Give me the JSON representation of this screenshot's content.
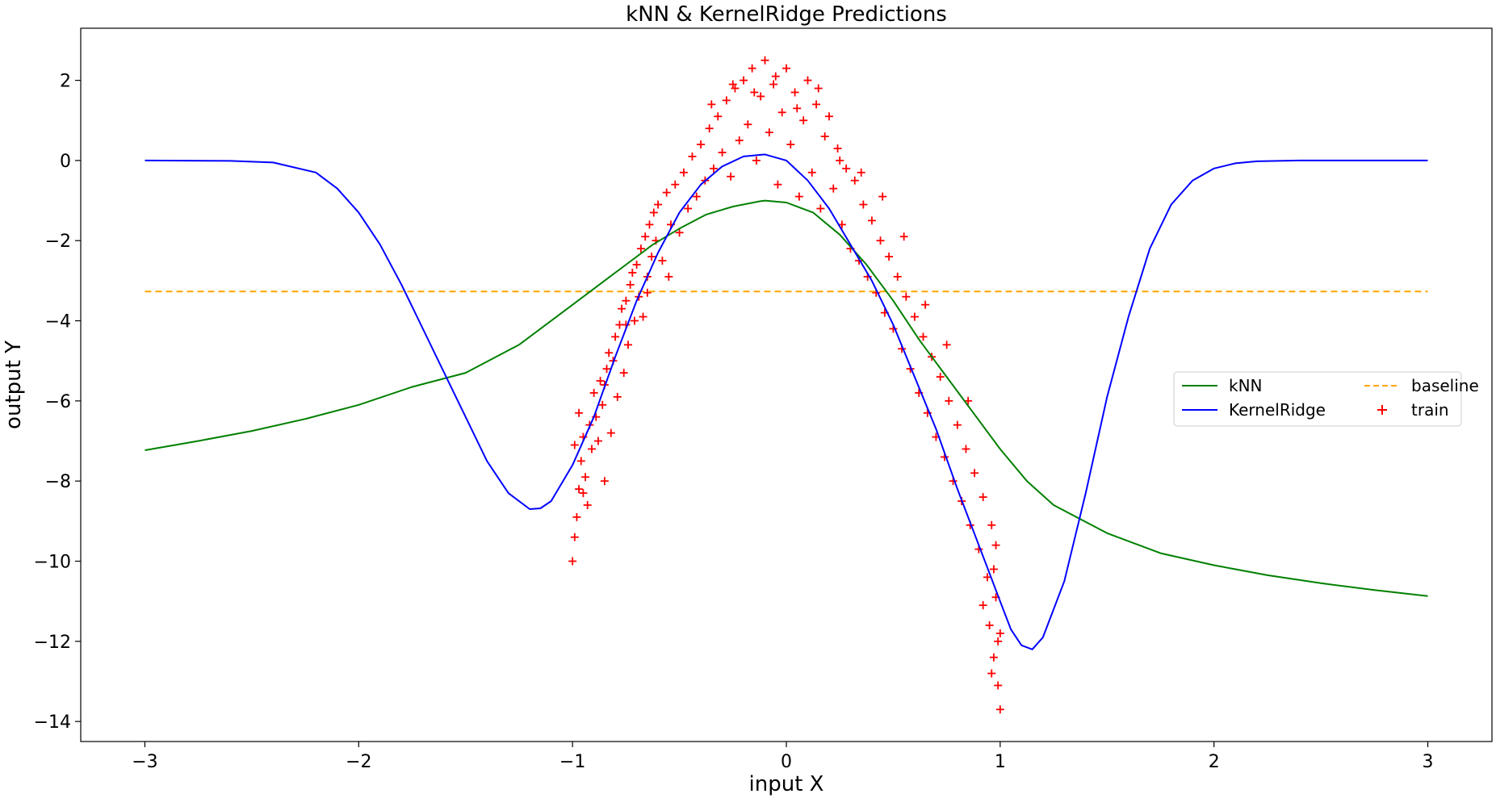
{
  "chart_data": {
    "type": "line",
    "title": "kNN & KernelRidge Predictions",
    "xlabel": "input X",
    "ylabel": "output Y",
    "xlim": [
      -3.3,
      3.3
    ],
    "ylim": [
      -14.5,
      3.3
    ],
    "xticks": [
      -3,
      -2,
      -1,
      0,
      1,
      2,
      3
    ],
    "yticks": [
      2,
      0,
      -2,
      -4,
      -6,
      -8,
      -10,
      -12,
      -14
    ],
    "xtick_labels": [
      "−3",
      "−2",
      "−1",
      "0",
      "1",
      "2",
      "3"
    ],
    "ytick_labels": [
      "2",
      "0",
      "−2",
      "−4",
      "−6",
      "−8",
      "−10",
      "−12",
      "−14"
    ],
    "grid": false,
    "legend": {
      "position": "center-right",
      "columns": 2,
      "entries": [
        {
          "label": "kNN",
          "color": "#008000",
          "style": "solid"
        },
        {
          "label": "KernelRidge",
          "color": "#0000ff",
          "style": "solid"
        },
        {
          "label": "baseline",
          "color": "#ffa500",
          "style": "dashed"
        },
        {
          "label": "train",
          "color": "#ff0000",
          "style": "plus-marker"
        }
      ]
    },
    "series": [
      {
        "name": "kNN",
        "color": "#008000",
        "style": "solid",
        "x": [
          -3.0,
          -2.75,
          -2.5,
          -2.25,
          -2.0,
          -1.75,
          -1.5,
          -1.25,
          -1.0,
          -0.875,
          -0.75,
          -0.625,
          -0.5,
          -0.375,
          -0.25,
          -0.125,
          -0.1,
          0.0,
          0.125,
          0.25,
          0.375,
          0.5,
          0.625,
          0.75,
          0.875,
          1.0,
          1.125,
          1.25,
          1.5,
          1.75,
          2.0,
          2.25,
          2.5,
          2.75,
          3.0
        ],
        "y": [
          -7.23,
          -7.0,
          -6.75,
          -6.45,
          -6.1,
          -5.65,
          -5.3,
          -4.6,
          -3.6,
          -3.1,
          -2.6,
          -2.1,
          -1.7,
          -1.35,
          -1.15,
          -1.02,
          -1.0,
          -1.05,
          -1.3,
          -1.85,
          -2.6,
          -3.5,
          -4.5,
          -5.4,
          -6.3,
          -7.2,
          -8.0,
          -8.6,
          -9.3,
          -9.8,
          -10.1,
          -10.35,
          -10.55,
          -10.72,
          -10.87
        ]
      },
      {
        "name": "KernelRidge",
        "color": "#0000ff",
        "style": "solid",
        "x": [
          -3.0,
          -2.6,
          -2.4,
          -2.2,
          -2.1,
          -2.0,
          -1.9,
          -1.8,
          -1.7,
          -1.6,
          -1.5,
          -1.4,
          -1.3,
          -1.2,
          -1.15,
          -1.1,
          -1.0,
          -0.9,
          -0.8,
          -0.7,
          -0.6,
          -0.5,
          -0.4,
          -0.3,
          -0.2,
          -0.1,
          0.0,
          0.1,
          0.2,
          0.3,
          0.4,
          0.5,
          0.6,
          0.7,
          0.8,
          0.9,
          1.0,
          1.05,
          1.1,
          1.15,
          1.2,
          1.3,
          1.4,
          1.5,
          1.6,
          1.7,
          1.8,
          1.9,
          2.0,
          2.1,
          2.2,
          2.4,
          2.6,
          3.0
        ],
        "y": [
          0.0,
          -0.01,
          -0.05,
          -0.3,
          -0.7,
          -1.3,
          -2.1,
          -3.1,
          -4.2,
          -5.3,
          -6.4,
          -7.5,
          -8.3,
          -8.7,
          -8.68,
          -8.5,
          -7.6,
          -6.4,
          -4.9,
          -3.5,
          -2.3,
          -1.3,
          -0.6,
          -0.15,
          0.1,
          0.15,
          0.0,
          -0.5,
          -1.2,
          -2.1,
          -3.0,
          -4.1,
          -5.4,
          -6.7,
          -8.2,
          -9.6,
          -11.0,
          -11.7,
          -12.1,
          -12.2,
          -11.9,
          -10.5,
          -8.3,
          -5.9,
          -3.9,
          -2.2,
          -1.1,
          -0.5,
          -0.2,
          -0.07,
          -0.02,
          0.0,
          0.0,
          0.0
        ]
      },
      {
        "name": "baseline",
        "color": "#ffa500",
        "style": "dashed",
        "x": [
          -3.0,
          3.0
        ],
        "y": [
          -3.27,
          -3.27
        ]
      }
    ],
    "scatter": {
      "name": "train",
      "color": "#ff0000",
      "marker": "+",
      "x_range": [
        -1.0,
        1.0
      ],
      "points": [
        [
          -1.0,
          -10.0
        ],
        [
          -0.99,
          -9.4
        ],
        [
          -0.98,
          -8.9
        ],
        [
          -0.97,
          -8.2
        ],
        [
          -0.96,
          -7.5
        ],
        [
          -0.95,
          -6.9
        ],
        [
          -0.94,
          -7.9
        ],
        [
          -0.93,
          -8.6
        ],
        [
          -0.92,
          -6.6
        ],
        [
          -0.91,
          -7.2
        ],
        [
          -0.9,
          -5.8
        ],
        [
          -0.89,
          -6.4
        ],
        [
          -0.88,
          -7.0
        ],
        [
          -0.87,
          -5.5
        ],
        [
          -0.86,
          -6.1
        ],
        [
          -0.85,
          -8.0
        ],
        [
          -0.84,
          -5.2
        ],
        [
          -0.83,
          -4.8
        ],
        [
          -0.82,
          -6.8
        ],
        [
          -0.81,
          -5.0
        ],
        [
          -0.8,
          -4.4
        ],
        [
          -0.79,
          -5.9
        ],
        [
          -0.78,
          -4.1
        ],
        [
          -0.77,
          -3.7
        ],
        [
          -0.76,
          -5.3
        ],
        [
          -0.75,
          -3.5
        ],
        [
          -0.74,
          -4.6
        ],
        [
          -0.73,
          -3.1
        ],
        [
          -0.72,
          -2.8
        ],
        [
          -0.71,
          -4.0
        ],
        [
          -0.7,
          -2.6
        ],
        [
          -0.69,
          -3.4
        ],
        [
          -0.68,
          -2.2
        ],
        [
          -0.67,
          -3.9
        ],
        [
          -0.66,
          -1.9
        ],
        [
          -0.65,
          -2.9
        ],
        [
          -0.64,
          -1.6
        ],
        [
          -0.63,
          -2.4
        ],
        [
          -0.62,
          -1.3
        ],
        [
          -0.61,
          -2.0
        ],
        [
          -0.6,
          -1.1
        ],
        [
          -0.58,
          -2.5
        ],
        [
          -0.56,
          -0.8
        ],
        [
          -0.54,
          -1.6
        ],
        [
          -0.52,
          -0.6
        ],
        [
          -0.5,
          -1.8
        ],
        [
          -0.48,
          -0.3
        ],
        [
          -0.46,
          -1.2
        ],
        [
          -0.44,
          0.1
        ],
        [
          -0.42,
          -0.9
        ],
        [
          -0.4,
          0.4
        ],
        [
          -0.38,
          -0.5
        ],
        [
          -0.36,
          0.8
        ],
        [
          -0.34,
          -0.2
        ],
        [
          -0.32,
          1.1
        ],
        [
          -0.3,
          0.2
        ],
        [
          -0.28,
          1.5
        ],
        [
          -0.26,
          -0.4
        ],
        [
          -0.24,
          1.8
        ],
        [
          -0.22,
          0.5
        ],
        [
          -0.2,
          2.0
        ],
        [
          -0.18,
          0.9
        ],
        [
          -0.16,
          2.3
        ],
        [
          -0.14,
          0.0
        ],
        [
          -0.12,
          1.6
        ],
        [
          -0.1,
          2.5
        ],
        [
          -0.08,
          0.7
        ],
        [
          -0.06,
          1.9
        ],
        [
          -0.04,
          -0.6
        ],
        [
          -0.02,
          1.2
        ],
        [
          0.0,
          2.3
        ],
        [
          0.02,
          0.4
        ],
        [
          0.04,
          1.7
        ],
        [
          0.06,
          -0.9
        ],
        [
          0.08,
          1.0
        ],
        [
          0.1,
          2.0
        ],
        [
          0.12,
          -0.3
        ],
        [
          0.14,
          1.4
        ],
        [
          0.16,
          -1.2
        ],
        [
          0.18,
          0.6
        ],
        [
          0.2,
          1.1
        ],
        [
          0.22,
          -0.7
        ],
        [
          0.24,
          0.3
        ],
        [
          0.26,
          -1.6
        ],
        [
          0.28,
          -0.2
        ],
        [
          0.3,
          -2.2
        ],
        [
          0.32,
          -0.5
        ],
        [
          0.34,
          -2.5
        ],
        [
          0.36,
          -1.1
        ],
        [
          0.38,
          -2.9
        ],
        [
          0.4,
          -1.5
        ],
        [
          0.42,
          -3.3
        ],
        [
          0.44,
          -2.0
        ],
        [
          0.46,
          -3.8
        ],
        [
          0.48,
          -2.4
        ],
        [
          0.5,
          -4.2
        ],
        [
          0.52,
          -2.9
        ],
        [
          0.54,
          -4.7
        ],
        [
          0.56,
          -3.4
        ],
        [
          0.58,
          -5.2
        ],
        [
          0.6,
          -3.9
        ],
        [
          0.62,
          -5.8
        ],
        [
          0.64,
          -4.4
        ],
        [
          0.66,
          -6.3
        ],
        [
          0.68,
          -4.9
        ],
        [
          0.7,
          -6.9
        ],
        [
          0.72,
          -5.4
        ],
        [
          0.74,
          -7.4
        ],
        [
          0.76,
          -6.0
        ],
        [
          0.78,
          -8.0
        ],
        [
          0.8,
          -6.6
        ],
        [
          0.82,
          -8.5
        ],
        [
          0.84,
          -7.2
        ],
        [
          0.86,
          -9.1
        ],
        [
          0.88,
          -7.8
        ],
        [
          0.9,
          -9.7
        ],
        [
          0.92,
          -8.4
        ],
        [
          0.94,
          -10.4
        ],
        [
          0.95,
          -11.6
        ],
        [
          0.96,
          -9.1
        ],
        [
          0.97,
          -12.4
        ],
        [
          0.98,
          -10.9
        ],
        [
          0.99,
          -13.1
        ],
        [
          1.0,
          -13.7
        ],
        [
          1.0,
          -11.8
        ],
        [
          0.99,
          -12.0
        ],
        [
          0.98,
          -9.6
        ],
        [
          0.97,
          -10.2
        ],
        [
          -0.97,
          -6.3
        ],
        [
          -0.95,
          -8.3
        ],
        [
          -0.35,
          1.4
        ],
        [
          -0.25,
          1.9
        ],
        [
          -0.15,
          1.7
        ],
        [
          -0.05,
          2.1
        ],
        [
          0.05,
          1.3
        ],
        [
          0.15,
          1.8
        ],
        [
          0.25,
          0.0
        ],
        [
          0.35,
          -0.3
        ],
        [
          0.45,
          -0.9
        ],
        [
          0.55,
          -1.9
        ],
        [
          -0.55,
          -2.9
        ],
        [
          -0.65,
          -3.3
        ],
        [
          -0.75,
          -4.1
        ],
        [
          -0.85,
          -5.6
        ],
        [
          0.65,
          -3.6
        ],
        [
          0.75,
          -4.6
        ],
        [
          0.85,
          -6.0
        ],
        [
          0.92,
          -11.1
        ],
        [
          0.96,
          -12.8
        ],
        [
          -0.99,
          -7.1
        ]
      ]
    }
  }
}
